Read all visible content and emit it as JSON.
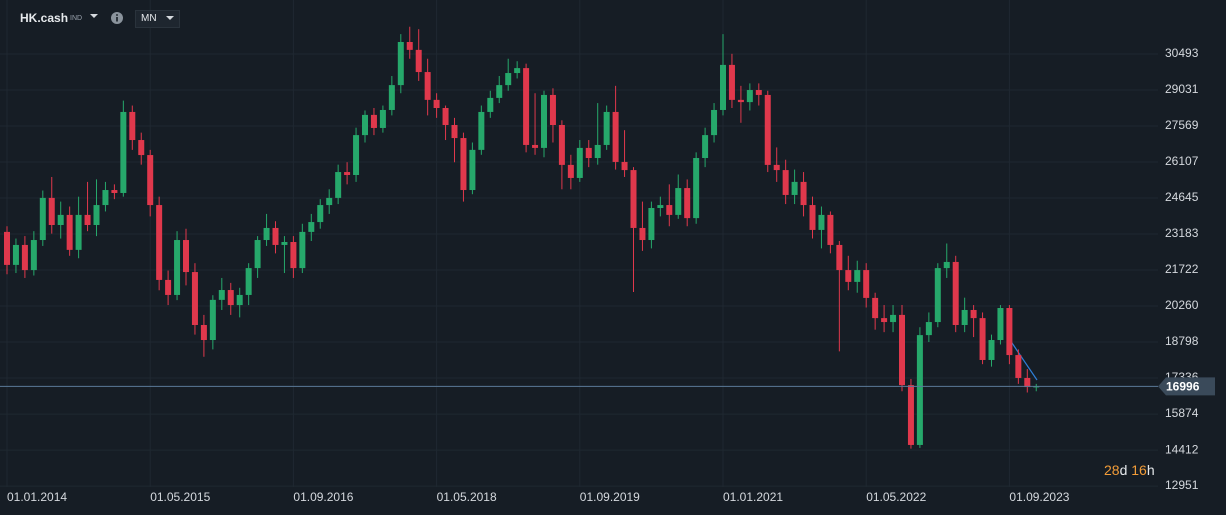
{
  "header": {
    "symbol": "HK.cash",
    "market": "IND",
    "timeframe": "MN"
  },
  "countdown": [
    "28",
    "d",
    "16",
    "h"
  ],
  "chart_data": {
    "type": "candlestick",
    "categories": [
      "01.01.2014",
      null,
      null,
      null,
      null,
      null,
      null,
      null,
      null,
      null,
      null,
      null,
      null,
      null,
      null,
      null,
      "01.05.2015",
      null,
      null,
      null,
      null,
      null,
      null,
      null,
      null,
      null,
      null,
      null,
      null,
      null,
      null,
      null,
      "01.09.2016",
      null,
      null,
      null,
      null,
      null,
      null,
      null,
      null,
      null,
      null,
      null,
      null,
      null,
      null,
      null,
      "01.05.2018",
      null,
      null,
      null,
      null,
      null,
      null,
      null,
      null,
      null,
      null,
      null,
      null,
      null,
      null,
      null,
      "01.09.2019",
      null,
      null,
      null,
      null,
      null,
      null,
      null,
      null,
      null,
      null,
      null,
      null,
      null,
      null,
      null,
      "01.01.2021",
      null,
      null,
      null,
      null,
      null,
      null,
      null,
      null,
      null,
      null,
      null,
      null,
      null,
      null,
      null,
      "01.05.2022",
      null,
      null,
      null,
      null,
      null,
      null,
      null,
      null,
      null,
      null,
      null,
      null,
      null,
      null,
      null,
      "01.09.2023",
      null,
      null,
      null
    ],
    "open": [
      23270,
      21930,
      22740,
      21720,
      22940,
      24650,
      23550,
      23960,
      22540,
      23960,
      23550,
      24360,
      24970,
      24850,
      28140,
      27000,
      26390,
      24360,
      21320,
      20710,
      22940,
      21640,
      19490,
      18880,
      20510,
      20910,
      20300,
      20710,
      21800,
      22940,
      23430,
      22740,
      22860,
      21800,
      23270,
      23670,
      24360,
      24650,
      25700,
      25580,
      27200,
      28020,
      27490,
      28220,
      29230,
      30980,
      30660,
      29760,
      28630,
      28300,
      27610,
      27080,
      24970,
      26600,
      28140,
      28710,
      29230,
      29720,
      29920,
      26800,
      26680,
      28830,
      27610,
      25990,
      25460,
      26680,
      26270,
      26800,
      28140,
      26110,
      25780,
      23430,
      22940,
      24240,
      24360,
      23960,
      25050,
      23830,
      26270,
      27200,
      28220,
      30050,
      28630,
      28540,
      29030,
      28830,
      25990,
      25780,
      24770,
      25300,
      24360,
      23350,
      23960,
      22740,
      21720,
      21240,
      21720,
      20590,
      19770,
      19610,
      19900,
      17050,
      14620,
      19080,
      19610,
      21800,
      22050,
      19490,
      20100,
      19770,
      18070,
      18880,
      20180,
      18270,
      17340,
      16970
    ],
    "high": [
      23500,
      23000,
      23100,
      23300,
      24950,
      25500,
      24500,
      24300,
      24700,
      25300,
      25400,
      25300,
      25200,
      28600,
      28400,
      27300,
      26600,
      24700,
      21700,
      23300,
      23400,
      22000,
      19900,
      20700,
      21400,
      21200,
      21000,
      22000,
      23100,
      24000,
      23700,
      23100,
      23100,
      23600,
      24000,
      24600,
      25000,
      26000,
      26100,
      27500,
      28200,
      28300,
      28400,
      29600,
      31300,
      31600,
      31500,
      30300,
      28900,
      28400,
      27900,
      27300,
      26900,
      28400,
      29000,
      29600,
      30300,
      30200,
      30100,
      28900,
      29000,
      29100,
      27800,
      26400,
      27000,
      27000,
      28500,
      28400,
      29200,
      27400,
      25900,
      24500,
      24500,
      24700,
      25200,
      25600,
      25400,
      26500,
      27500,
      28500,
      31300,
      30500,
      29200,
      29300,
      29300,
      29000,
      26700,
      26200,
      25800,
      25700,
      24700,
      24300,
      24100,
      22900,
      22300,
      22100,
      22000,
      20800,
      20300,
      20300,
      20300,
      17300,
      19400,
      20000,
      22000,
      22800,
      22300,
      20600,
      20300,
      20000,
      19100,
      20300,
      20300,
      18500,
      17700,
      17100
    ],
    "low": [
      21550,
      21600,
      21400,
      21500,
      22700,
      23200,
      23000,
      22300,
      22200,
      23300,
      23100,
      24100,
      24600,
      24700,
      26600,
      26000,
      23900,
      20900,
      20300,
      20500,
      21100,
      19100,
      18200,
      18500,
      20100,
      19900,
      19800,
      20300,
      21400,
      22700,
      22400,
      21600,
      21400,
      21600,
      22900,
      23400,
      24000,
      24400,
      25200,
      25300,
      26900,
      27200,
      27300,
      28000,
      28900,
      30300,
      29400,
      28000,
      27900,
      27000,
      26100,
      24500,
      24800,
      26400,
      27900,
      28500,
      29000,
      29500,
      26500,
      26400,
      26300,
      26900,
      25000,
      25000,
      25300,
      25900,
      26000,
      26600,
      25800,
      25500,
      20830,
      22500,
      22600,
      23900,
      23500,
      23800,
      23500,
      23600,
      25900,
      26900,
      28000,
      28300,
      27700,
      28200,
      28400,
      25700,
      25300,
      24400,
      24400,
      23900,
      23000,
      22600,
      22400,
      18420,
      20900,
      20800,
      20200,
      19300,
      19200,
      19200,
      16800,
      14470,
      14500,
      18800,
      19400,
      21400,
      19200,
      19200,
      19000,
      17900,
      17800,
      18700,
      17900,
      17100,
      16750,
      16800
    ],
    "close": [
      21930,
      22740,
      21720,
      22940,
      24650,
      23550,
      23960,
      22540,
      23960,
      23550,
      24360,
      24970,
      24850,
      28140,
      27000,
      26390,
      24360,
      21320,
      20710,
      22940,
      21640,
      19490,
      18880,
      20510,
      20910,
      20300,
      20710,
      21800,
      22940,
      23430,
      22740,
      22860,
      21800,
      23270,
      23670,
      24360,
      24650,
      25700,
      25580,
      27200,
      28020,
      27490,
      28220,
      29230,
      30980,
      30660,
      29760,
      28630,
      28300,
      27610,
      27080,
      24970,
      26600,
      28140,
      28710,
      29230,
      29720,
      29920,
      26800,
      26680,
      28830,
      27610,
      25990,
      25460,
      26680,
      26270,
      26800,
      28140,
      26110,
      25780,
      23430,
      22940,
      24240,
      24360,
      23960,
      25050,
      23830,
      26270,
      27200,
      28220,
      30050,
      28630,
      28540,
      29030,
      28830,
      25990,
      25780,
      24770,
      25300,
      24360,
      23350,
      23960,
      22740,
      21720,
      21240,
      21720,
      20590,
      19770,
      19610,
      19900,
      17050,
      14620,
      19080,
      19610,
      21800,
      22050,
      19490,
      20100,
      19770,
      18070,
      18880,
      20180,
      18270,
      17340,
      16970,
      16996
    ],
    "up_color": "#26a86b",
    "down_color": "#e0384c",
    "ylim": [
      12913,
      32685
    ],
    "yticks": [
      30493,
      29031,
      27569,
      26107,
      24645,
      23183,
      21722,
      20260,
      18798,
      17336,
      15874,
      14412,
      12951
    ],
    "last_price": 16996,
    "grid": true
  }
}
